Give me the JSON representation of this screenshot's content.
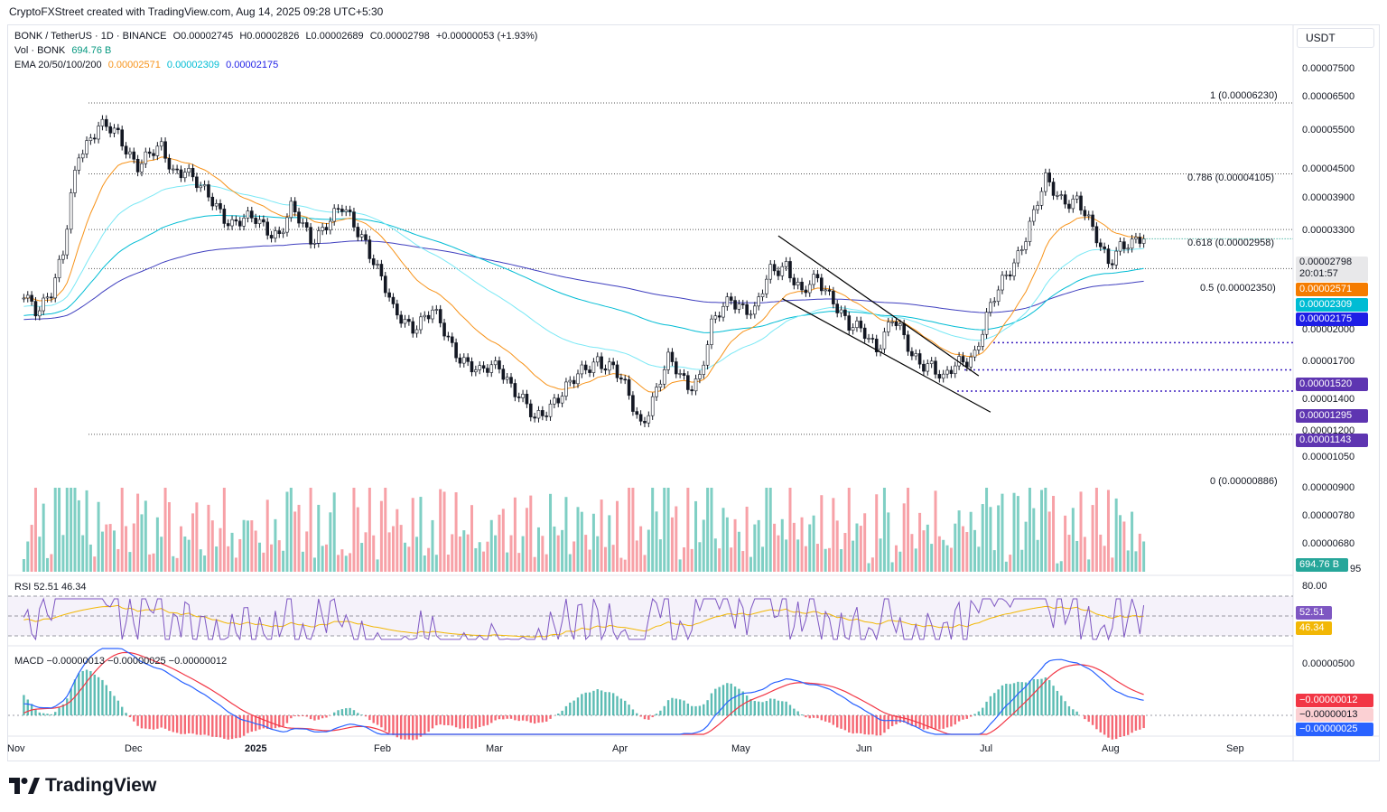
{
  "caption": "CryptoFXStreet created with TradingView.com, Aug 14, 2025 09:28 UTC+5:30",
  "currency_button": "USDT",
  "legend": {
    "line1": {
      "symbol": "BONK / TetherUS · 1D · BINANCE",
      "o": "O0.00002745",
      "h": "H0.00002826",
      "l": "L0.00002689",
      "c": "C0.00002798",
      "chg": "+0.00000053 (+1.93%)"
    },
    "line2": {
      "label": "Vol · BONK",
      "value": "694.76 B"
    },
    "line3": {
      "label": "EMA 20/50/100/200",
      "v1": "0.00002571",
      "v2": "0.00002309",
      "v3": "0.00002175"
    }
  },
  "rsi_legend": {
    "label": "RSI",
    "v1": "52.51",
    "v2": "46.34"
  },
  "macd_legend": {
    "label": "MACD",
    "v1": "−0.00000013",
    "v2": "−0.00000025",
    "v3": "−0.00000012"
  },
  "brand": "TradingView",
  "colors": {
    "up": "#089981",
    "down": "#f23645",
    "vol_up": "#7fcfc4",
    "vol_down": "#f7a1a7",
    "ema20": "#f7931a",
    "ema50": "#00e5ff",
    "ema100": "#00bcd4",
    "ema200": "#3f3fbf",
    "rsi": "#7e57c2",
    "rsi_ma": "#f2b705",
    "macd": "#2962ff",
    "signal": "#f23645",
    "support": "#3b1fbf",
    "channel": "#000000"
  },
  "price_tags": {
    "last": "0.00002798",
    "countdown": "20:01:57",
    "ema_a": "0.00002571",
    "ema_b": "0.00002309",
    "ema_c": "0.00002175",
    "s1": "0.00001520",
    "s2": "0.00001295",
    "s3": "0.00001143",
    "vol": "694.76 B",
    "vol_axis_tail": "95",
    "rsi1": "52.51",
    "rsi2": "46.34",
    "macd1": "−0.00000012",
    "macd2": "−0.00000013",
    "macd3": "−0.00000025"
  },
  "y_axis_labels": [
    "0.00007500",
    "0.00006500",
    "0.00005500",
    "0.00004500",
    "0.00003900",
    "0.00003300",
    "0.00002000",
    "0.00001700",
    "0.00001400",
    "0.00001200",
    "0.00001050",
    "0.00000900",
    "0.00000780",
    "0.00000680"
  ],
  "rsi_axis": "80.00",
  "macd_axis": "0.00000500",
  "fib_labels": [
    "1 (0.00006230)",
    "0.786 (0.00004105)",
    "0.618 (0.00002958)",
    "0.5 (0.00002350)",
    "0 (0.00000886)"
  ],
  "x_axis_labels": [
    "Nov",
    "Dec",
    "2025",
    "Feb",
    "Mar",
    "Apr",
    "May",
    "Jun",
    "Jul",
    "Aug",
    "Sep"
  ],
  "chart_data": {
    "type": "candlestick",
    "title": "BONK / TetherUS · 1D · BINANCE",
    "scale": "log",
    "ylim": [
      6.3e-06,
      8.3e-05
    ],
    "x_range": [
      "2024-10-28",
      "2025-09-20"
    ],
    "fibonacci": [
      {
        "level": "1",
        "price": 6.23e-05
      },
      {
        "level": "0.786",
        "price": 4.105e-05
      },
      {
        "level": "0.618",
        "price": 2.958e-05
      },
      {
        "level": "0.5",
        "price": 2.35e-05
      },
      {
        "level": "0",
        "price": 8.86e-06
      }
    ],
    "supports": [
      1.52e-05,
      1.295e-05,
      1.143e-05
    ],
    "descending_channel": {
      "upper": [
        [
          "2025-05-12",
          2.85e-05
        ],
        [
          "2025-07-02",
          1.25e-05
        ]
      ],
      "lower": [
        [
          "2025-05-13",
          1.97e-05
        ],
        [
          "2025-07-05",
          1.01e-05
        ]
      ]
    },
    "close_path": [
      [
        "2024-11-01",
        2e-05
      ],
      [
        "2024-11-04",
        1.88e-05
      ],
      [
        "2024-11-08",
        2.05e-05
      ],
      [
        "2024-11-11",
        2.5e-05
      ],
      [
        "2024-11-13",
        3.55e-05
      ],
      [
        "2024-11-15",
        4.7e-05
      ],
      [
        "2024-11-20",
        5.45e-05
      ],
      [
        "2024-11-25",
        5.1e-05
      ],
      [
        "2024-11-30",
        4.4e-05
      ],
      [
        "2024-12-06",
        4.7e-05
      ],
      [
        "2024-12-09",
        4.2e-05
      ],
      [
        "2024-12-12",
        4.3e-05
      ],
      [
        "2024-12-16",
        3.7e-05
      ],
      [
        "2024-12-20",
        3.4e-05
      ],
      [
        "2024-12-24",
        3.1e-05
      ],
      [
        "2024-12-30",
        3.1e-05
      ],
      [
        "2025-01-05",
        2.9e-05
      ],
      [
        "2025-01-08",
        3.3e-05
      ],
      [
        "2025-01-13",
        2.8e-05
      ],
      [
        "2025-01-17",
        3.1e-05
      ],
      [
        "2025-01-21",
        3.3e-05
      ],
      [
        "2025-01-27",
        2.8e-05
      ],
      [
        "2025-01-31",
        2.2e-05
      ],
      [
        "2025-02-03",
        1.8e-05
      ],
      [
        "2025-02-08",
        1.7e-05
      ],
      [
        "2025-02-13",
        1.8e-05
      ],
      [
        "2025-02-18",
        1.5e-05
      ],
      [
        "2025-02-25",
        1.25e-05
      ],
      [
        "2025-03-02",
        1.35e-05
      ],
      [
        "2025-03-06",
        1.15e-05
      ],
      [
        "2025-03-11",
        9.5e-06
      ],
      [
        "2025-03-16",
        1.1e-05
      ],
      [
        "2025-03-21",
        1.2e-05
      ],
      [
        "2025-03-27",
        1.4e-05
      ],
      [
        "2025-03-31",
        1.3e-05
      ],
      [
        "2025-04-03",
        1.15e-05
      ],
      [
        "2025-04-07",
        9.5e-06
      ],
      [
        "2025-04-11",
        1.15e-05
      ],
      [
        "2025-04-14",
        1.35e-05
      ],
      [
        "2025-04-19",
        1.2e-05
      ],
      [
        "2025-04-22",
        1.25e-05
      ],
      [
        "2025-04-25",
        1.65e-05
      ],
      [
        "2025-04-30",
        2e-05
      ],
      [
        "2025-05-06",
        1.8e-05
      ],
      [
        "2025-05-10",
        2.3e-05
      ],
      [
        "2025-05-14",
        2.45e-05
      ],
      [
        "2025-05-18",
        2e-05
      ],
      [
        "2025-05-22",
        2.2e-05
      ],
      [
        "2025-05-26",
        2e-05
      ],
      [
        "2025-05-30",
        1.65e-05
      ],
      [
        "2025-06-03",
        1.6e-05
      ],
      [
        "2025-06-06",
        1.5e-05
      ],
      [
        "2025-06-10",
        1.75e-05
      ],
      [
        "2025-06-15",
        1.4e-05
      ],
      [
        "2025-06-20",
        1.35e-05
      ],
      [
        "2025-06-23",
        1.2e-05
      ],
      [
        "2025-06-27",
        1.35e-05
      ],
      [
        "2025-07-01",
        1.45e-05
      ],
      [
        "2025-07-04",
        1.75e-05
      ],
      [
        "2025-07-08",
        2.15e-05
      ],
      [
        "2025-07-12",
        2.6e-05
      ],
      [
        "2025-07-16",
        3.2e-05
      ],
      [
        "2025-07-19",
        3.9e-05
      ],
      [
        "2025-07-23",
        3.6e-05
      ],
      [
        "2025-07-27",
        3.5e-05
      ],
      [
        "2025-07-31",
        2.9e-05
      ],
      [
        "2025-08-04",
        2.5e-05
      ],
      [
        "2025-08-07",
        2.7e-05
      ],
      [
        "2025-08-10",
        2.65e-05
      ],
      [
        "2025-08-13",
        2.8e-05
      ]
    ]
  }
}
